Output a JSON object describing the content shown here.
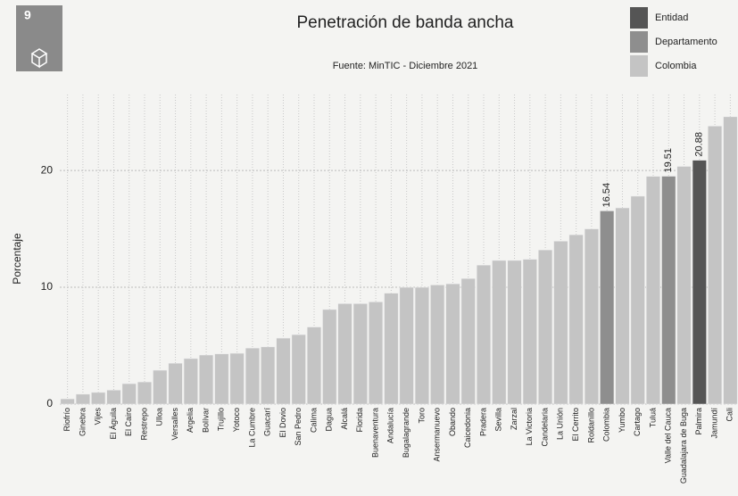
{
  "logo_number": "9",
  "chart_data": {
    "type": "bar",
    "title": "Penetración de banda ancha",
    "subtitle": "Fuente: MinTIC - Diciembre 2021",
    "y_label": "Porcentaje",
    "legend": [
      {
        "name": "Entidad",
        "color": "#555555"
      },
      {
        "name": "Departamento",
        "color": "#8e8e8e"
      },
      {
        "name": "Colombia",
        "color": "#c4c4c4"
      }
    ],
    "categories": [
      "Riofrío",
      "Ginebra",
      "Vijes",
      "El Águila",
      "El Cairo",
      "Restrepo",
      "Ulloa",
      "Versalles",
      "Argelia",
      "Bolívar",
      "Trujillo",
      "Yotoco",
      "La Cumbre",
      "Guacarí",
      "El Dovio",
      "San Pedro",
      "Calima",
      "Dagua",
      "Alcalá",
      "Florida",
      "Buenaventura",
      "Andalucía",
      "Bugalagrande",
      "Toro",
      "Ansermanuevo",
      "Obando",
      "Caicedonia",
      "Pradera",
      "Sevilla",
      "Zarzal",
      "La Victoria",
      "Candelaria",
      "La Unión",
      "El Cerrito",
      "Roldanillo",
      "Colombia",
      "Yumbo",
      "Cartago",
      "Tuluá",
      "Valle del Cauca",
      "Guadalajara de Buga",
      "Palmira",
      "Jamundí",
      "Cali"
    ],
    "values": [
      0.45,
      0.85,
      1.0,
      1.2,
      1.75,
      1.9,
      2.9,
      3.5,
      3.9,
      4.2,
      4.3,
      4.35,
      4.8,
      4.9,
      5.65,
      5.95,
      6.6,
      8.1,
      8.6,
      8.6,
      8.75,
      9.5,
      10.0,
      10.0,
      10.2,
      10.3,
      10.75,
      11.9,
      12.3,
      12.3,
      12.4,
      13.2,
      13.95,
      14.5,
      15.0,
      16.54,
      16.8,
      17.8,
      19.5,
      19.51,
      20.35,
      20.88,
      23.8,
      24.6
    ],
    "colors": [
      "#c4c4c4",
      "#c4c4c4",
      "#c4c4c4",
      "#c4c4c4",
      "#c4c4c4",
      "#c4c4c4",
      "#c4c4c4",
      "#c4c4c4",
      "#c4c4c4",
      "#c4c4c4",
      "#c4c4c4",
      "#c4c4c4",
      "#c4c4c4",
      "#c4c4c4",
      "#c4c4c4",
      "#c4c4c4",
      "#c4c4c4",
      "#c4c4c4",
      "#c4c4c4",
      "#c4c4c4",
      "#c4c4c4",
      "#c4c4c4",
      "#c4c4c4",
      "#c4c4c4",
      "#c4c4c4",
      "#c4c4c4",
      "#c4c4c4",
      "#c4c4c4",
      "#c4c4c4",
      "#c4c4c4",
      "#c4c4c4",
      "#c4c4c4",
      "#c4c4c4",
      "#c4c4c4",
      "#c4c4c4",
      "#8e8e8e",
      "#c4c4c4",
      "#c4c4c4",
      "#c4c4c4",
      "#8e8e8e",
      "#c4c4c4",
      "#555555",
      "#c4c4c4",
      "#c4c4c4"
    ],
    "value_labels": [
      null,
      null,
      null,
      null,
      null,
      null,
      null,
      null,
      null,
      null,
      null,
      null,
      null,
      null,
      null,
      null,
      null,
      null,
      null,
      null,
      null,
      null,
      null,
      null,
      null,
      null,
      null,
      null,
      null,
      null,
      null,
      null,
      null,
      null,
      null,
      "16.54",
      null,
      null,
      null,
      "19.51",
      null,
      "20.88",
      null,
      null
    ],
    "ylim": [
      0,
      26.5
    ],
    "yticks": [
      0,
      10,
      20
    ],
    "grid": true
  }
}
